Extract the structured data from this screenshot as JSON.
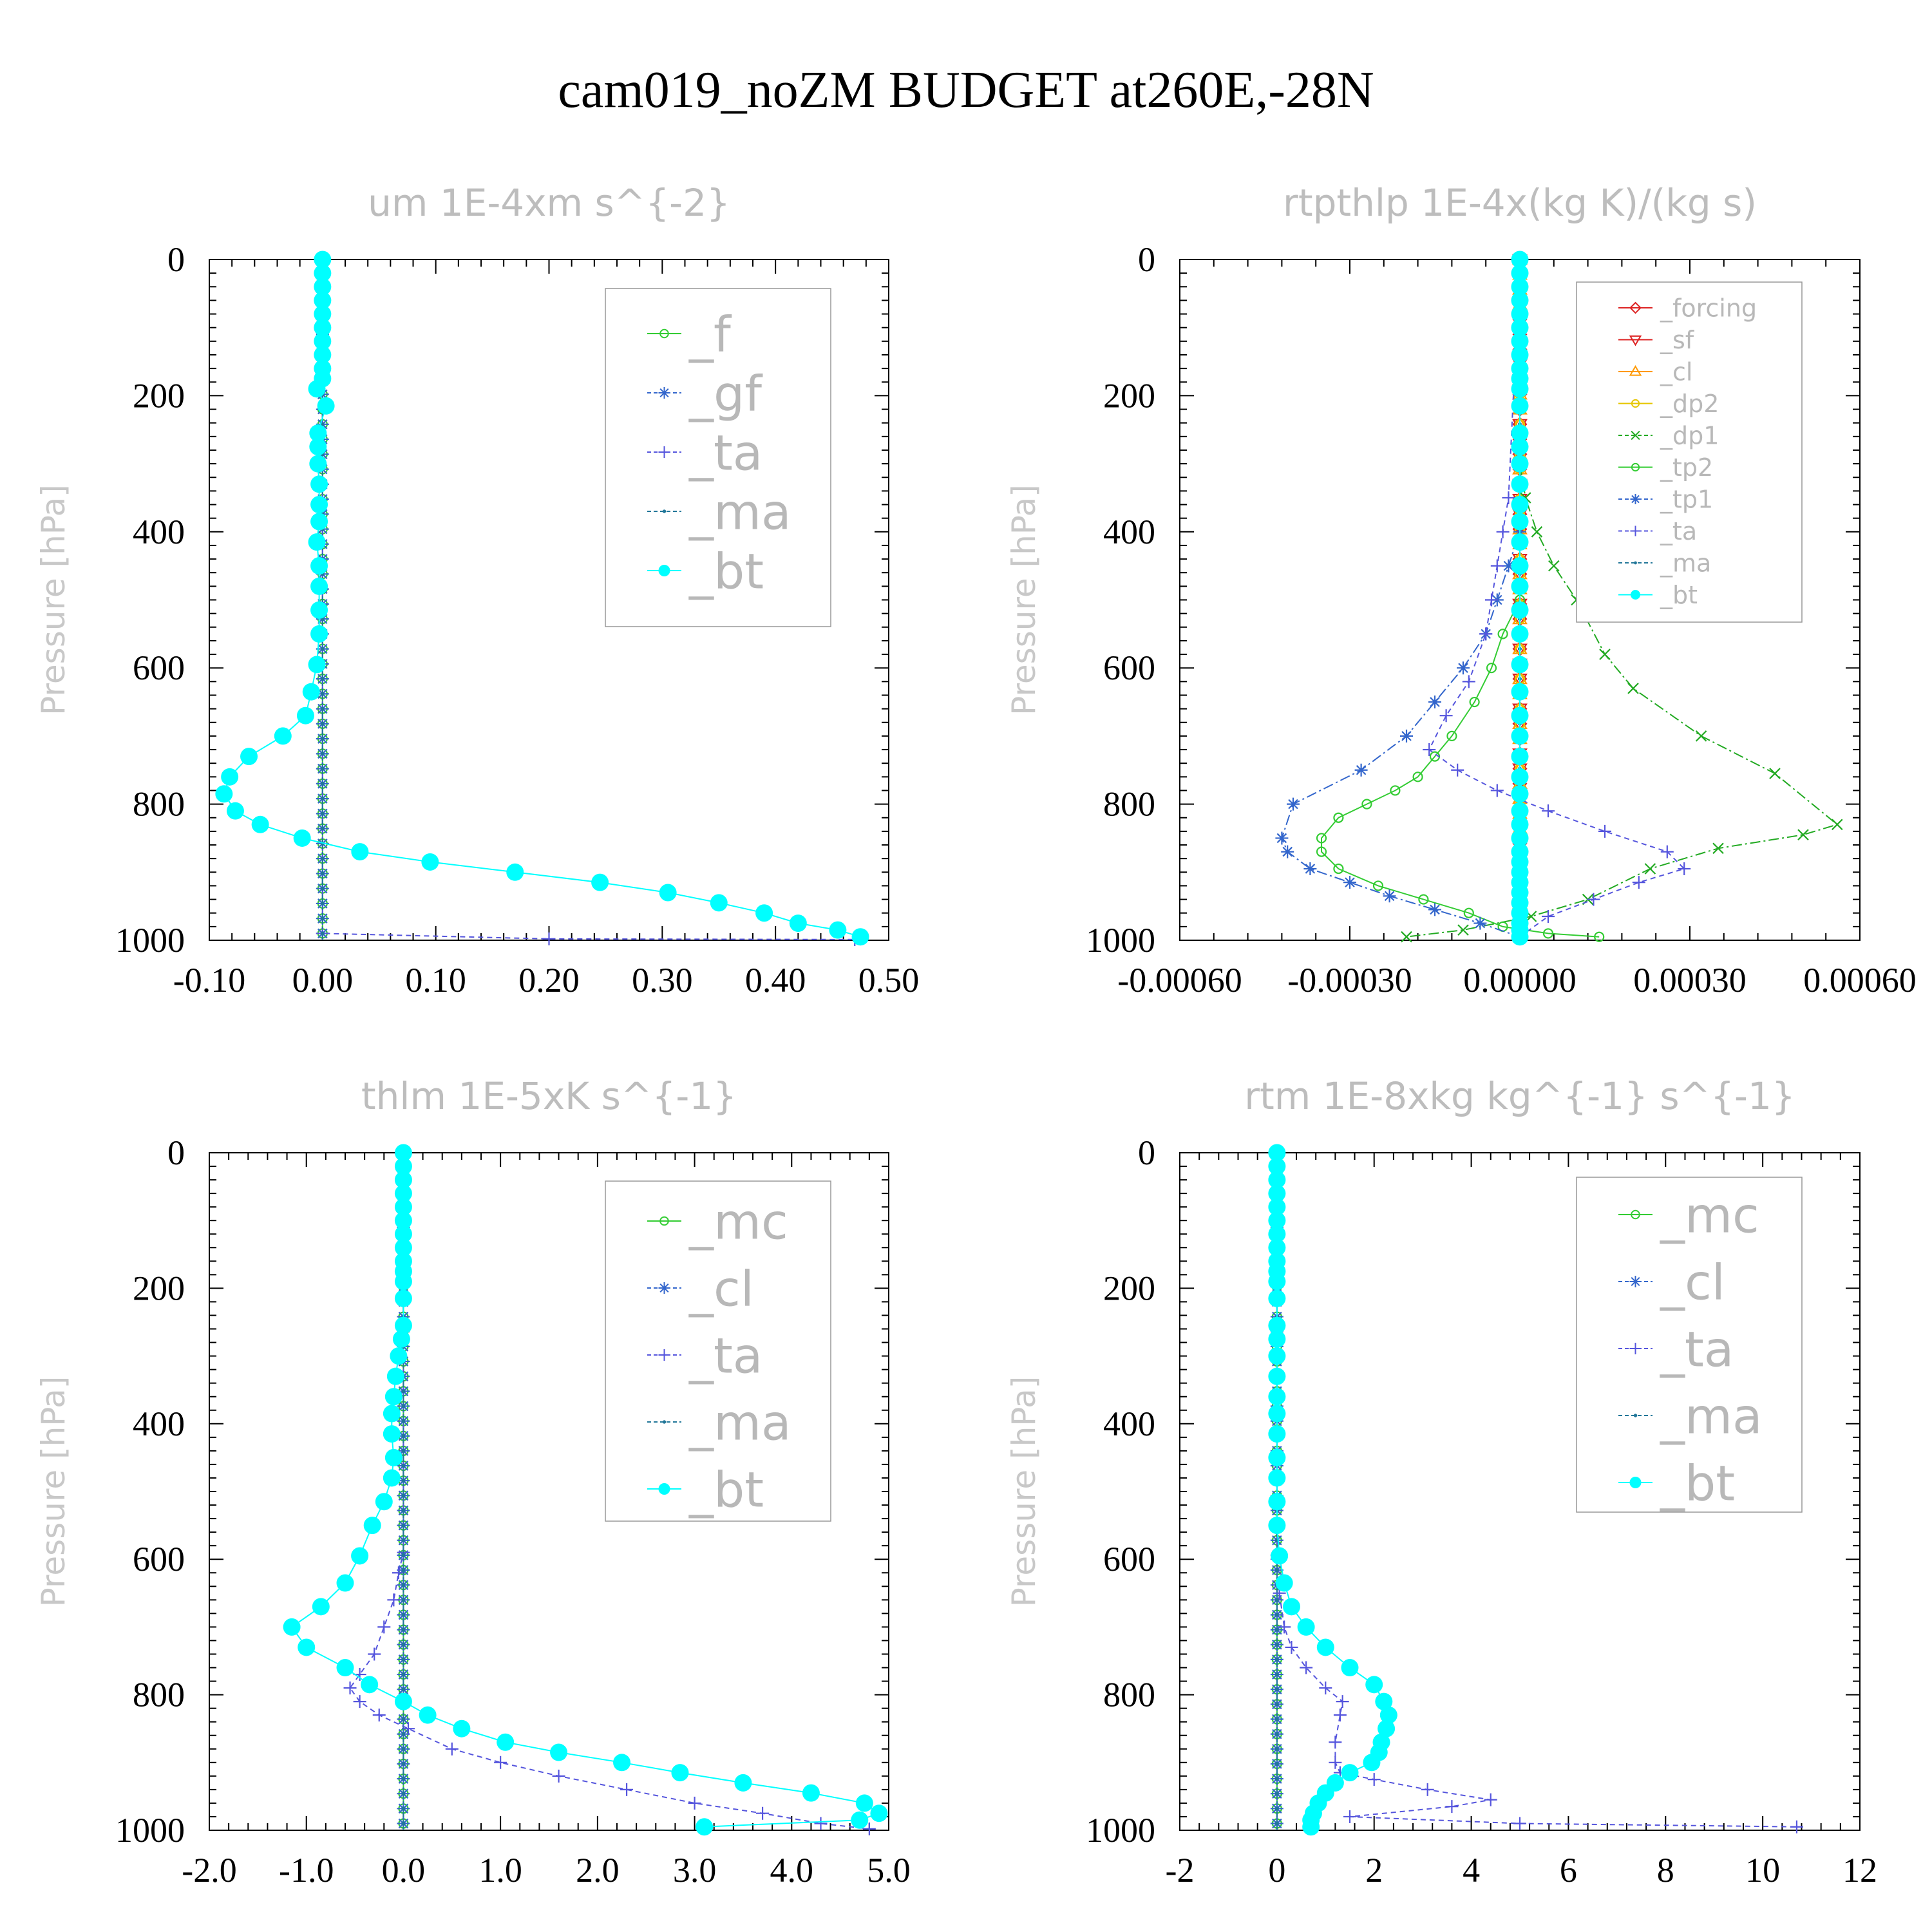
{
  "title": "cam019_noZM  BUDGET at260E,-28N",
  "colors": {
    "green": "#33cc33",
    "blue": "#3366cc",
    "purple": "#5555dd",
    "teal": "#227799",
    "cyan": "#00ffff",
    "red": "#dd2222",
    "orange": "#ff9900",
    "yellow": "#e6c600",
    "darkgreen": "#22aa22"
  },
  "chart_data": [
    {
      "type": "line",
      "title": "um  1E-4xm s^{-2}",
      "ylabel": "Pressure [hPa]",
      "ylim": [
        0,
        1000
      ],
      "y_inverted": true,
      "yticks": [
        "0",
        "200",
        "400",
        "600",
        "800",
        "1000"
      ],
      "xlim": [
        -0.1,
        0.5
      ],
      "xticks": [
        "-0.10",
        "0.00",
        "0.10",
        "0.20",
        "0.30",
        "0.40",
        "0.50"
      ],
      "legend": "top-right",
      "series": [
        {
          "name": "_f",
          "color": "green",
          "marker": "circle-open",
          "x": [
            0,
            0
          ],
          "y": [
            0,
            1000
          ]
        },
        {
          "name": "_gf",
          "color": "blue",
          "marker": "star",
          "x": [
            0,
            0
          ],
          "y": [
            0,
            1000
          ]
        },
        {
          "name": "_ta",
          "color": "purple",
          "marker": "plus",
          "x": [
            0,
            0,
            0.2,
            0.47
          ],
          "y": [
            0,
            990,
            998,
            999
          ]
        },
        {
          "name": "_ma",
          "color": "teal",
          "marker": "dot",
          "x": [
            0,
            0
          ],
          "y": [
            0,
            1000
          ]
        },
        {
          "name": "_bt",
          "color": "cyan",
          "marker": "filled-circle",
          "x": [
            0,
            0,
            0,
            0,
            0,
            0,
            0,
            0,
            0,
            0,
            -0.005,
            0.003,
            -0.004,
            -0.004,
            -0.004,
            -0.003,
            -0.003,
            -0.003,
            -0.005,
            -0.003,
            -0.003,
            -0.003,
            -0.003,
            -0.005,
            -0.01,
            -0.015,
            -0.035,
            -0.065,
            -0.082,
            -0.087,
            -0.077,
            -0.055,
            -0.018,
            0.033,
            0.095,
            0.17,
            0.245,
            0.305,
            0.35,
            0.39,
            0.42,
            0.455,
            0.475
          ],
          "y": [
            0,
            20,
            40,
            60,
            80,
            100,
            120,
            140,
            160,
            175,
            190,
            215,
            255,
            275,
            300,
            330,
            360,
            385,
            415,
            450,
            480,
            515,
            550,
            595,
            635,
            670,
            700,
            730,
            760,
            785,
            810,
            830,
            850,
            870,
            885,
            900,
            915,
            930,
            945,
            960,
            975,
            985,
            995
          ]
        }
      ]
    },
    {
      "type": "line",
      "title": "rtpthlp  1E-4x(kg K)/(kg s)",
      "ylabel": "Pressure [hPa]",
      "ylim": [
        0,
        1000
      ],
      "y_inverted": true,
      "yticks": [
        "0",
        "200",
        "400",
        "600",
        "800",
        "1000"
      ],
      "xlim": [
        -0.0006,
        0.0006
      ],
      "xticks": [
        "-0.00060",
        "-0.00030",
        "0.00000",
        "0.00030",
        "0.00060"
      ],
      "legend": "top-right",
      "series": [
        {
          "name": "_forcing",
          "color": "red",
          "marker": "diamond",
          "x": [
            0,
            0
          ],
          "y": [
            0,
            1000
          ]
        },
        {
          "name": "_sf",
          "color": "red",
          "marker": "triangle-down",
          "x": [
            0,
            0
          ],
          "y": [
            0,
            1000
          ]
        },
        {
          "name": "_cl",
          "color": "orange",
          "marker": "triangle-up",
          "x": [
            0,
            0
          ],
          "y": [
            0,
            1000
          ]
        },
        {
          "name": "_dp2",
          "color": "yellow",
          "marker": "circle-open",
          "x": [
            0,
            0
          ],
          "y": [
            0,
            1000
          ]
        },
        {
          "name": "_dp1",
          "color": "darkgreen",
          "marker": "x",
          "x": [
            0,
            0,
            1e-05,
            3e-05,
            6e-05,
            0.0001,
            0.00015,
            0.0002,
            0.00032,
            0.00045,
            0.00056,
            0.0005,
            0.00035,
            0.00023,
            0.00012,
            2e-05,
            -0.0001,
            -0.0002
          ],
          "y": [
            0,
            300,
            350,
            400,
            450,
            500,
            580,
            630,
            700,
            755,
            830,
            845,
            865,
            895,
            940,
            965,
            985,
            995
          ]
        },
        {
          "name": "_tp2",
          "color": "green",
          "marker": "circle-open",
          "x": [
            0,
            0,
            -3e-05,
            -5e-05,
            -8e-05,
            -0.00012,
            -0.00015,
            -0.00018,
            -0.00022,
            -0.00027,
            -0.00032,
            -0.00035,
            -0.00035,
            -0.00032,
            -0.00025,
            -0.00017,
            -9e-05,
            -3e-05,
            5e-05,
            0.00014
          ],
          "y": [
            0,
            500,
            550,
            600,
            650,
            700,
            730,
            760,
            780,
            800,
            820,
            850,
            870,
            895,
            920,
            940,
            960,
            980,
            990,
            995
          ]
        },
        {
          "name": "_tp1",
          "color": "blue",
          "marker": "star",
          "x": [
            0,
            0,
            -2e-05,
            -4e-05,
            -6e-05,
            -0.0001,
            -0.00015,
            -0.0002,
            -0.00028,
            -0.0004,
            -0.00042,
            -0.00041,
            -0.00037,
            -0.0003,
            -0.00023,
            -0.00015,
            -7e-05,
            0
          ],
          "y": [
            0,
            400,
            450,
            500,
            550,
            600,
            650,
            700,
            750,
            800,
            850,
            870,
            895,
            915,
            935,
            955,
            975,
            995
          ]
        },
        {
          "name": "_ta",
          "color": "purple",
          "marker": "plus",
          "x": [
            0,
            -2e-05,
            -3e-05,
            -4e-05,
            -5e-05,
            -6e-05,
            -9e-05,
            -0.00013,
            -0.00016,
            -0.00011,
            -4e-05,
            5e-05,
            0.00015,
            0.00026,
            0.00029,
            0.00021,
            0.00013,
            5e-05,
            0
          ],
          "y": [
            0,
            350,
            400,
            450,
            500,
            550,
            620,
            670,
            720,
            750,
            780,
            810,
            840,
            870,
            895,
            915,
            940,
            965,
            995
          ]
        },
        {
          "name": "_ma",
          "color": "teal",
          "marker": "dot",
          "x": [
            0,
            0
          ],
          "y": [
            0,
            1000
          ]
        },
        {
          "name": "_bt",
          "color": "cyan",
          "marker": "filled-circle",
          "x": [
            0,
            0,
            0,
            0,
            0,
            0,
            0,
            0,
            0,
            0,
            0,
            0,
            0,
            0,
            0,
            0,
            0,
            0,
            0,
            0,
            0,
            0,
            0,
            0,
            0,
            0,
            0,
            0,
            0,
            0,
            0,
            0,
            0,
            0,
            0,
            0,
            0,
            0,
            0,
            0,
            0,
            0,
            0
          ],
          "y": [
            0,
            20,
            40,
            60,
            80,
            100,
            120,
            140,
            160,
            175,
            190,
            215,
            255,
            275,
            300,
            330,
            360,
            385,
            415,
            450,
            480,
            515,
            550,
            595,
            635,
            670,
            700,
            730,
            760,
            785,
            810,
            830,
            850,
            870,
            885,
            900,
            915,
            930,
            945,
            960,
            975,
            985,
            995
          ]
        }
      ]
    },
    {
      "type": "line",
      "title": "thlm  1E-5xK s^{-1}",
      "ylabel": "Pressure [hPa]",
      "ylim": [
        0,
        1000
      ],
      "y_inverted": true,
      "yticks": [
        "0",
        "200",
        "400",
        "600",
        "800",
        "1000"
      ],
      "xlim": [
        -2.0,
        5.0
      ],
      "xticks": [
        "-2.0",
        "-1.0",
        "0.0",
        "1.0",
        "2.0",
        "3.0",
        "4.0",
        "5.0"
      ],
      "legend": "top-right",
      "series": [
        {
          "name": "_mc",
          "color": "green",
          "marker": "circle-open",
          "x": [
            0,
            0
          ],
          "y": [
            0,
            1000
          ]
        },
        {
          "name": "_cl",
          "color": "blue",
          "marker": "star",
          "x": [
            0,
            0
          ],
          "y": [
            0,
            1000
          ]
        },
        {
          "name": "_ta",
          "color": "purple",
          "marker": "plus",
          "x": [
            0,
            0,
            -0.05,
            -0.1,
            -0.2,
            -0.3,
            -0.45,
            -0.55,
            -0.45,
            -0.25,
            0.05,
            0.5,
            1.0,
            1.6,
            2.3,
            3.0,
            3.7,
            4.3,
            4.8
          ],
          "y": [
            0,
            590,
            620,
            660,
            700,
            740,
            770,
            790,
            810,
            830,
            850,
            880,
            900,
            920,
            940,
            960,
            975,
            990,
            998
          ]
        },
        {
          "name": "_ma",
          "color": "teal",
          "marker": "dot",
          "x": [
            0,
            0
          ],
          "y": [
            0,
            1000
          ]
        },
        {
          "name": "_bt",
          "color": "cyan",
          "marker": "filled-circle",
          "x": [
            0,
            0,
            0,
            0,
            0,
            0,
            0,
            0,
            0,
            0,
            0,
            0,
            0,
            -0.02,
            -0.05,
            -0.08,
            -0.1,
            -0.12,
            -0.12,
            -0.1,
            -0.12,
            -0.2,
            -0.32,
            -0.45,
            -0.6,
            -0.85,
            -1.15,
            -1.0,
            -0.6,
            -0.35,
            0.0,
            0.25,
            0.6,
            1.05,
            1.6,
            2.25,
            2.85,
            3.5,
            4.2,
            4.75,
            4.9,
            4.7,
            3.1
          ],
          "y": [
            0,
            20,
            40,
            60,
            80,
            100,
            120,
            140,
            160,
            175,
            190,
            215,
            255,
            275,
            300,
            330,
            360,
            385,
            415,
            450,
            480,
            515,
            550,
            595,
            635,
            670,
            700,
            730,
            760,
            785,
            810,
            830,
            850,
            870,
            885,
            900,
            915,
            930,
            945,
            960,
            975,
            985,
            995
          ]
        }
      ]
    },
    {
      "type": "line",
      "title": "rtm  1E-8xkg kg^{-1} s^{-1}",
      "ylabel": "Pressure [hPa]",
      "ylim": [
        0,
        1000
      ],
      "y_inverted": true,
      "yticks": [
        "0",
        "200",
        "400",
        "600",
        "800",
        "1000"
      ],
      "xlim": [
        -2,
        12
      ],
      "xticks": [
        "-2",
        "0",
        "2",
        "4",
        "6",
        "8",
        "10",
        "12"
      ],
      "legend": "top-right",
      "series": [
        {
          "name": "_mc",
          "color": "green",
          "marker": "circle-open",
          "x": [
            0,
            0
          ],
          "y": [
            0,
            1000
          ]
        },
        {
          "name": "_cl",
          "color": "blue",
          "marker": "star",
          "x": [
            0,
            0
          ],
          "y": [
            0,
            1000
          ]
        },
        {
          "name": "_ta",
          "color": "purple",
          "marker": "plus",
          "x": [
            0,
            0,
            0.05,
            0.15,
            0.3,
            0.6,
            1.0,
            1.35,
            1.3,
            1.2,
            1.2,
            1.3,
            2.0,
            3.1,
            4.4,
            3.6,
            1.5,
            5.0,
            10.7
          ],
          "y": [
            0,
            600,
            650,
            700,
            730,
            760,
            790,
            810,
            830,
            870,
            900,
            915,
            925,
            940,
            955,
            965,
            980,
            990,
            995
          ]
        },
        {
          "name": "_ma",
          "color": "teal",
          "marker": "dot",
          "x": [
            0,
            0
          ],
          "y": [
            0,
            1000
          ]
        },
        {
          "name": "_bt",
          "color": "cyan",
          "marker": "filled-circle",
          "x": [
            0,
            0,
            0,
            0,
            0,
            0,
            0,
            0,
            0,
            0,
            0,
            0,
            0,
            0,
            0,
            0,
            0,
            0,
            0,
            0,
            0,
            0,
            0,
            0.05,
            0.15,
            0.3,
            0.6,
            1.0,
            1.5,
            2.0,
            2.2,
            2.3,
            2.25,
            2.15,
            2.1,
            1.95,
            1.5,
            1.2,
            1.0,
            0.85,
            0.75,
            0.7,
            0.7
          ],
          "y": [
            0,
            20,
            40,
            60,
            80,
            100,
            120,
            140,
            160,
            175,
            190,
            215,
            255,
            275,
            300,
            330,
            360,
            385,
            415,
            450,
            480,
            515,
            550,
            595,
            635,
            670,
            700,
            730,
            760,
            785,
            810,
            830,
            850,
            870,
            885,
            900,
            915,
            930,
            945,
            960,
            975,
            985,
            995
          ]
        }
      ]
    }
  ]
}
